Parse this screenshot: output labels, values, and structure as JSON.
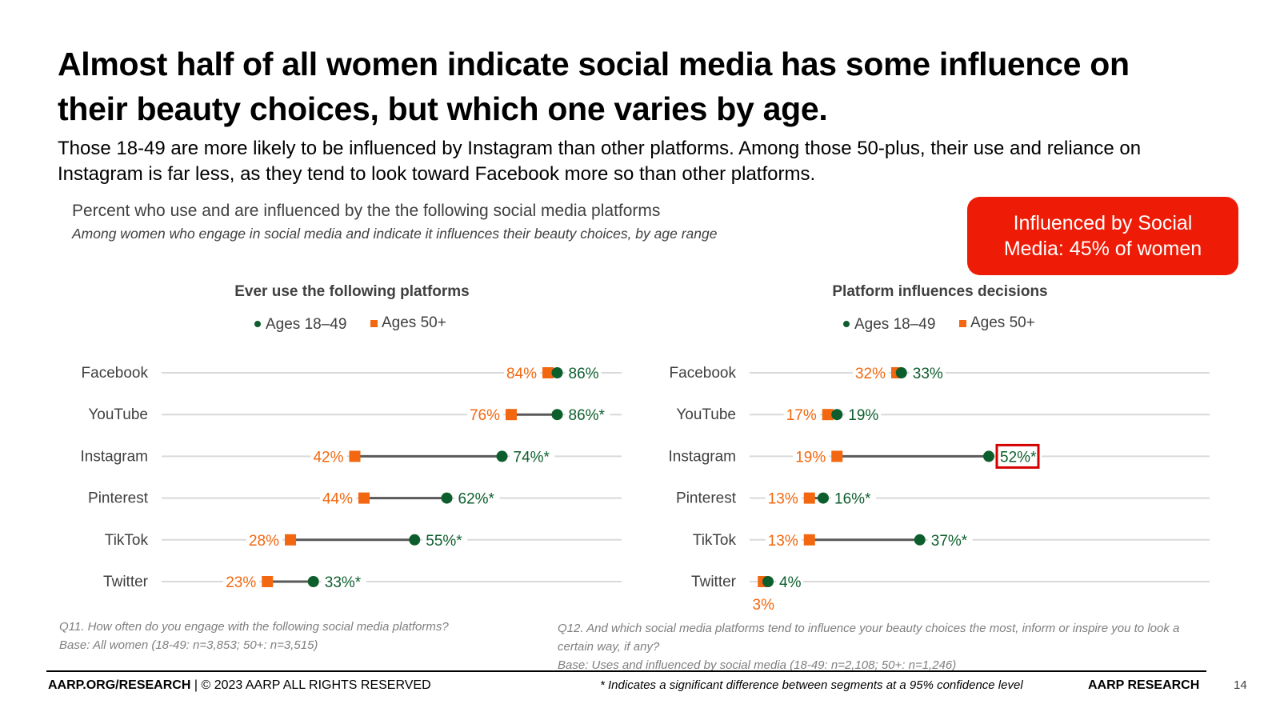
{
  "slide": {
    "title": "Almost half of all women indicate social media has some influence on their beauty choices, but which one varies by age.",
    "subtitle": "Those 18-49 are more likely to be influenced by Instagram than other platforms. Among those 50-plus, their use and reliance on Instagram is far less, as they tend to look toward Facebook more so than other platforms.",
    "chart_caption": "Percent who use and are influenced by the the following social media platforms",
    "chart_subcaption": "Among women who engage in social media and indicate it influences their beauty choices, by age range",
    "callout": "Influenced by Social Media: 45% of women",
    "page_number": "14"
  },
  "colors": {
    "ages_18_49": "#0d5e2d",
    "ages_50_plus": "#f2670f",
    "callout_bg": "#ee1c06",
    "highlight_box": "#d40000",
    "connector": "#595959",
    "gridline": "#d9d9d9"
  },
  "chart_data": [
    {
      "type": "dumbbell",
      "title": "Ever use the following platforms",
      "categories": [
        "Facebook",
        "YouTube",
        "Instagram",
        "Pinterest",
        "TikTok",
        "Twitter"
      ],
      "series": [
        {
          "name": "Ages 18–49",
          "values": [
            86,
            86,
            74,
            62,
            55,
            33
          ],
          "labels": [
            "86%",
            "86%*",
            "74%*",
            "62%*",
            "55%*",
            "33%*"
          ]
        },
        {
          "name": "Ages 50+",
          "values": [
            84,
            76,
            42,
            44,
            28,
            23
          ],
          "labels": [
            "84%",
            "76%",
            "42%",
            "44%",
            "28%",
            "23%"
          ]
        }
      ],
      "xlim": [
        0,
        100
      ],
      "grid": true,
      "legend": "top-center",
      "notes": [
        "Q11. How often do you engage with the following social media platforms?",
        "Base: All women (18-49: n=3,853; 50+: n=3,515)"
      ]
    },
    {
      "type": "dumbbell",
      "title": "Platform influences decisions",
      "categories": [
        "Facebook",
        "YouTube",
        "Instagram",
        "Pinterest",
        "TikTok",
        "Twitter"
      ],
      "series": [
        {
          "name": "Ages 18–49",
          "values": [
            33,
            19,
            52,
            16,
            37,
            4
          ],
          "labels": [
            "33%",
            "19%",
            "52%*",
            "16%*",
            "37%*",
            "4%"
          ]
        },
        {
          "name": "Ages 50+",
          "values": [
            32,
            17,
            19,
            13,
            13,
            3
          ],
          "labels": [
            "32%",
            "17%",
            "19%",
            "13%",
            "13%",
            "3%"
          ]
        }
      ],
      "xlim": [
        0,
        100
      ],
      "grid": true,
      "legend": "top-center",
      "highlight": "Instagram",
      "notes": [
        "Q12. And which social media platforms tend to influence your beauty choices the most, inform or inspire you to look a certain way, if any?",
        "Base: Uses and influenced by social media (18-49: n=2,108; 50+: n=1,246)"
      ]
    }
  ],
  "footer": {
    "site": "AARP.ORG/RESEARCH",
    "rights": " | © 2023 AARP ALL RIGHTS RESERVED",
    "significance_note": "* Indicates a significant difference between segments at a 95% confidence level",
    "brand": "AARP RESEARCH"
  }
}
